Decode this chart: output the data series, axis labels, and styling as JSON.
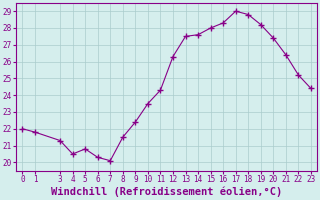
{
  "x": [
    0,
    1,
    3,
    4,
    5,
    6,
    7,
    8,
    9,
    10,
    11,
    12,
    13,
    14,
    15,
    16,
    17,
    18,
    19,
    20,
    21,
    22,
    23
  ],
  "y": [
    22.0,
    21.8,
    21.3,
    20.5,
    20.8,
    20.3,
    20.1,
    21.5,
    22.4,
    23.5,
    24.3,
    26.3,
    27.5,
    27.6,
    28.0,
    28.3,
    29.0,
    28.8,
    28.2,
    27.4,
    26.4,
    25.2,
    24.4
  ],
  "line_color": "#880088",
  "marker": "+",
  "marker_size": 4,
  "marker_linewidth": 1.0,
  "line_width": 0.8,
  "bg_color": "#d5eeed",
  "grid_color": "#aacccc",
  "xlabel": "Windchill (Refroidissement éolien,°C)",
  "xlabel_fontsize": 7.5,
  "ylim_min": 19.5,
  "ylim_max": 29.5,
  "xlim_min": -0.5,
  "xlim_max": 23.5,
  "yticks": [
    20,
    21,
    22,
    23,
    24,
    25,
    26,
    27,
    28,
    29
  ],
  "xticks": [
    0,
    1,
    3,
    4,
    5,
    6,
    7,
    8,
    9,
    10,
    11,
    12,
    13,
    14,
    15,
    16,
    17,
    18,
    19,
    20,
    21,
    22,
    23
  ],
  "tick_fontsize": 5.5,
  "spine_color": "#880088"
}
